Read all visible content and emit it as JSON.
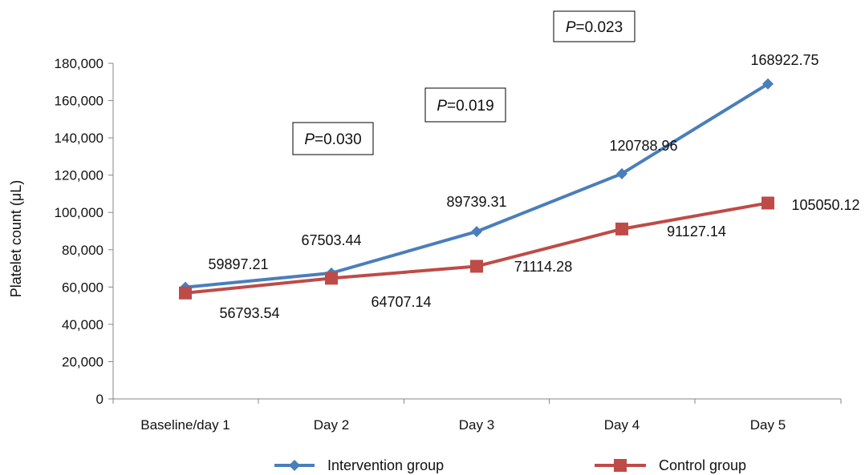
{
  "chart_data": {
    "type": "line",
    "categories": [
      "Baseline/day 1",
      "Day 2",
      "Day 3",
      "Day 4",
      "Day 5"
    ],
    "ylabel": "Platelet count (μL)",
    "xlabel": "",
    "ylim": [
      0,
      180000
    ],
    "y_ticks": [
      0,
      20000,
      40000,
      60000,
      80000,
      100000,
      120000,
      140000,
      160000,
      180000
    ],
    "y_tick_labels": [
      "0",
      "20,000",
      "40,000",
      "60,000",
      "80,000",
      "100,000",
      "120,000",
      "140,000",
      "160,000",
      "180,000"
    ],
    "grid": false,
    "legend_position": "bottom",
    "series": [
      {
        "name": "Intervention group",
        "color": "#4a7ebb",
        "marker": "diamond",
        "values": [
          59897.21,
          67503.44,
          89739.31,
          120788.96,
          168922.75
        ],
        "labels": [
          "59897.21",
          "67503.44",
          "89739.31",
          "120788.96",
          "168922.75"
        ]
      },
      {
        "name": "Control group",
        "color": "#be4b48",
        "marker": "square",
        "values": [
          56793.54,
          64707.14,
          71114.28,
          91127.14,
          105050.12
        ],
        "labels": [
          "56793.54",
          "64707.14",
          "71114.28",
          "91127.14",
          "105050.12"
        ]
      }
    ],
    "annotations": [
      {
        "prefix": "P",
        "value": "=0.030"
      },
      {
        "prefix": "P",
        "value": "=0.019"
      },
      {
        "prefix": "P",
        "value": "=0.023"
      }
    ]
  }
}
